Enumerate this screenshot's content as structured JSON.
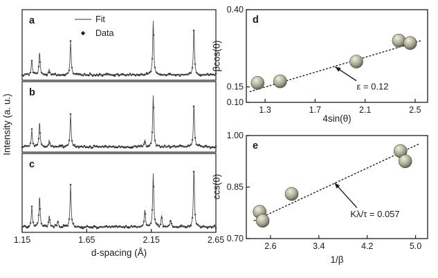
{
  "figure": {
    "bg": "#ffffff",
    "ink": "#1a1a1a",
    "ball_colors": [
      "#eeeee0",
      "#a8a892",
      "#4a4a3e"
    ]
  },
  "chart_data": [
    {
      "type": "line",
      "id": "xrd",
      "description": "Three stacked diffraction patterns (panels a, b, c) with fitted curve and data points",
      "xlabel": "d-spacing (Å)",
      "ylabel": "Intensity (a. u.)",
      "xlim": [
        1.15,
        2.65
      ],
      "xticks": [
        "1.15",
        "1.65",
        "2.15",
        "2.65"
      ],
      "legend": [
        "Fit",
        "Data"
      ],
      "panels": [
        {
          "label": "a",
          "peaks": [
            [
              1.225,
              0.28
            ],
            [
              1.285,
              0.42
            ],
            [
              1.36,
              0.1
            ],
            [
              1.525,
              0.62
            ],
            [
              2.165,
              1.0
            ],
            [
              2.48,
              0.88
            ]
          ]
        },
        {
          "label": "b",
          "peaks": [
            [
              1.225,
              0.3
            ],
            [
              1.285,
              0.46
            ],
            [
              1.36,
              0.12
            ],
            [
              1.525,
              0.6
            ],
            [
              2.1,
              0.12
            ],
            [
              2.165,
              0.95
            ],
            [
              2.48,
              0.8
            ]
          ]
        },
        {
          "label": "c",
          "peaks": [
            [
              1.225,
              0.32
            ],
            [
              1.285,
              0.5
            ],
            [
              1.36,
              0.18
            ],
            [
              1.425,
              0.1
            ],
            [
              1.525,
              0.68
            ],
            [
              2.1,
              0.28
            ],
            [
              2.165,
              0.85
            ],
            [
              2.23,
              0.18
            ],
            [
              2.3,
              0.12
            ],
            [
              2.48,
              0.95
            ]
          ]
        }
      ]
    },
    {
      "type": "scatter",
      "id": "d",
      "panel_label": "d",
      "xlabel": "4sin(θ)",
      "ylabel": "βcos(0)",
      "xlim": [
        1.15,
        2.6
      ],
      "ylim": [
        0.1,
        0.4
      ],
      "xticks": [
        "1.3",
        "1.7",
        "2.1",
        "2.5"
      ],
      "yticks": [
        "0.40",
        "0.15",
        "0.10"
      ],
      "points": [
        [
          1.24,
          0.163
        ],
        [
          1.42,
          0.168
        ],
        [
          2.03,
          0.232
        ],
        [
          2.37,
          0.3
        ],
        [
          2.46,
          0.292
        ]
      ],
      "trendline": {
        "x1": 1.18,
        "y1": 0.135,
        "x2": 2.55,
        "y2": 0.3,
        "style": "dotted"
      },
      "annotation": {
        "text": "ε = 0.12",
        "text_at": [
          2.16,
          0.15
        ],
        "arrow_from": [
          2.03,
          0.17
        ],
        "arrow_to": [
          1.86,
          0.215
        ]
      }
    },
    {
      "type": "scatter",
      "id": "e",
      "panel_label": "e",
      "xlabel": "1/β",
      "ylabel": "ccs(0)",
      "xlim": [
        2.2,
        5.2
      ],
      "ylim": [
        0.7,
        1.0
      ],
      "xticks": [
        "2.6",
        "3.4",
        "4.2",
        "5.0"
      ],
      "yticks": [
        "1.00",
        "0.85",
        "0.70"
      ],
      "points": [
        [
          2.42,
          0.778
        ],
        [
          2.47,
          0.752
        ],
        [
          2.95,
          0.83
        ],
        [
          4.75,
          0.955
        ],
        [
          4.83,
          0.925
        ]
      ],
      "trendline": {
        "x1": 2.33,
        "y1": 0.752,
        "x2": 5.05,
        "y2": 0.975,
        "style": "dotted"
      },
      "annotation": {
        "text": "Kλ/τ = 0.057",
        "text_at": [
          4.33,
          0.77
        ],
        "arrow_from": [
          4.03,
          0.79
        ],
        "arrow_to": [
          3.66,
          0.862
        ]
      }
    }
  ]
}
